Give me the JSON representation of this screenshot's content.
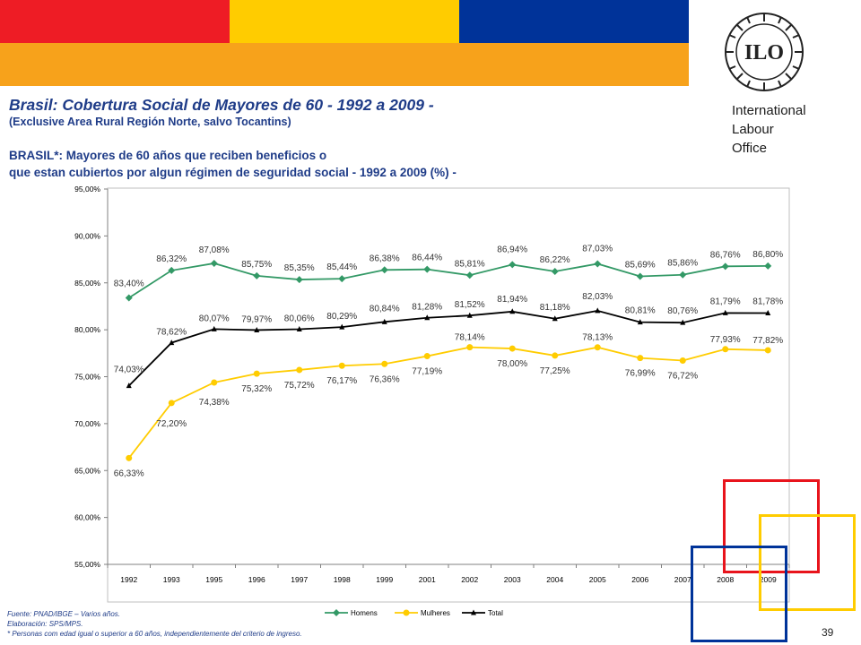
{
  "colors": {
    "band_red": "#ee1c25",
    "band_yellow": "#ffcc00",
    "band_blue": "#003399",
    "band_orange": "#f7a21b",
    "title_blue": "#1f3c88",
    "square_red": "#e8141c",
    "square_yellow": "#ffcc00",
    "square_blue": "#003399"
  },
  "header": {
    "logo_text": "ILO",
    "org_line1": "International",
    "org_line2": "Labour",
    "org_line3": "Office"
  },
  "title": "Brasil: Cobertura Social de Mayores de 60 - 1992 a 2009 -",
  "subtitle": "(Exclusive Area Rural Región Norte, salvo Tocantins)",
  "chart_heading_line1": "BRASIL*: Mayores de 60 años que reciben beneficios o",
  "chart_heading_line2": "que estan cubiertos por algun régimen de seguridad social - 1992 a 2009 (%) -",
  "chart_data": {
    "type": "line",
    "categories": [
      "1992",
      "1993",
      "1995",
      "1996",
      "1997",
      "1998",
      "1999",
      "2001",
      "2002",
      "2003",
      "2004",
      "2005",
      "2006",
      "2007",
      "2008",
      "2009"
    ],
    "ylim": [
      55,
      95
    ],
    "yticks": [
      55,
      60,
      65,
      70,
      75,
      80,
      85,
      90,
      95
    ],
    "ytick_labels": [
      "55,00%",
      "60,00%",
      "65,00%",
      "70,00%",
      "75,00%",
      "80,00%",
      "85,00%",
      "90,00%",
      "95,00%"
    ],
    "grid": false,
    "legend_position": "bottom",
    "series": [
      {
        "name": "Homens",
        "color": "#339966",
        "marker": "diamond",
        "values": [
          83.4,
          86.32,
          87.08,
          85.75,
          85.35,
          85.44,
          86.38,
          86.44,
          85.81,
          86.94,
          86.22,
          87.03,
          85.69,
          85.86,
          86.76,
          86.8
        ],
        "labels": [
          "83,40%",
          "86,32%",
          "87,08%",
          "85,75%",
          "85,35%",
          "85,44%",
          "86,38%",
          "86,44%",
          "85,81%",
          "86,94%",
          "86,22%",
          "87,03%",
          "85,69%",
          "85,86%",
          "86,76%",
          "86,80%"
        ]
      },
      {
        "name": "Mulheres",
        "color": "#ffcc00",
        "marker": "circle",
        "values": [
          66.33,
          72.2,
          74.38,
          75.32,
          75.72,
          76.17,
          76.36,
          77.19,
          78.14,
          78.0,
          77.25,
          78.13,
          76.99,
          76.72,
          77.93,
          77.82
        ],
        "labels": [
          "66,33%",
          "72,20%",
          "74,38%",
          "75,32%",
          "75,72%",
          "76,17%",
          "76,36%",
          "77,19%",
          "78,14%",
          "78,00%",
          "77,25%",
          "78,13%",
          "76,99%",
          "76,72%",
          "77,93%",
          "77,82%"
        ]
      },
      {
        "name": "Total",
        "color": "#000000",
        "marker": "triangle",
        "values": [
          74.03,
          78.62,
          80.07,
          79.97,
          80.06,
          80.29,
          80.84,
          81.28,
          81.52,
          81.94,
          81.18,
          82.03,
          80.81,
          80.76,
          81.79,
          81.78
        ],
        "labels": [
          "74,03%",
          "78,62%",
          "80,07%",
          "79,97%",
          "80,06%",
          "80,29%",
          "80,84%",
          "81,28%",
          "81,52%",
          "81,94%",
          "81,18%",
          "82,03%",
          "80,81%",
          "80,76%",
          "81,79%",
          "81,78%"
        ]
      }
    ]
  },
  "footnotes": {
    "source": "Fuente: PNAD/IBGE – Varios años.",
    "elaboration": "Elaboración: SPS/MPS.",
    "note": "* Personas com edad igual o superior a 60 años, independientemente del criterio de ingreso."
  },
  "page_number": "39"
}
